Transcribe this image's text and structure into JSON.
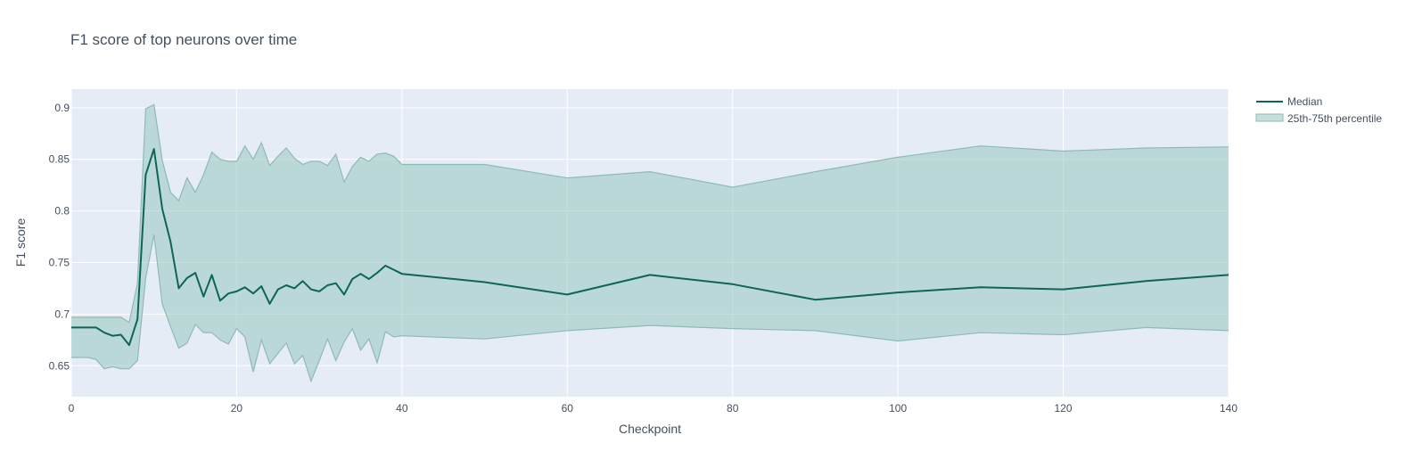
{
  "chart_data": {
    "type": "line",
    "title": "F1 score of top neurons over time",
    "xlabel": "Checkpoint",
    "ylabel": "F1 score",
    "xlim": [
      0,
      140
    ],
    "ylim": [
      0.62,
      0.918
    ],
    "x_ticks": [
      0,
      20,
      40,
      60,
      80,
      100,
      120,
      140
    ],
    "y_ticks": [
      0.65,
      0.7,
      0.75,
      0.8,
      0.85,
      0.9
    ],
    "y_tick_labels": [
      "0.65",
      "0.7",
      "0.75",
      "0.8",
      "0.85",
      "0.9"
    ],
    "grid": true,
    "legend_position": "top-right",
    "colors": {
      "median_line": "#0d6553",
      "band_fill": "#9fcbc4",
      "band_line": "#8fbab4",
      "plot_bg": "#e5ecf6",
      "grid": "#ffffff"
    },
    "x": [
      0,
      1,
      2,
      3,
      4,
      5,
      6,
      7,
      8,
      9,
      10,
      11,
      12,
      13,
      14,
      15,
      16,
      17,
      18,
      19,
      20,
      21,
      22,
      23,
      24,
      25,
      26,
      27,
      28,
      29,
      30,
      31,
      32,
      33,
      34,
      35,
      36,
      37,
      38,
      39,
      40,
      50,
      60,
      70,
      80,
      90,
      100,
      110,
      120,
      130,
      140
    ],
    "series": [
      {
        "name": "Median",
        "kind": "line",
        "values": [
          0.687,
          0.687,
          0.687,
          0.687,
          0.682,
          0.679,
          0.68,
          0.67,
          0.695,
          0.835,
          0.86,
          0.802,
          0.77,
          0.725,
          0.735,
          0.74,
          0.717,
          0.738,
          0.713,
          0.72,
          0.722,
          0.726,
          0.72,
          0.727,
          0.71,
          0.724,
          0.728,
          0.725,
          0.732,
          0.724,
          0.722,
          0.728,
          0.73,
          0.719,
          0.734,
          0.739,
          0.734,
          0.74,
          0.747,
          0.743,
          0.739,
          0.731,
          0.719,
          0.738,
          0.729,
          0.714,
          0.721,
          0.726,
          0.724,
          0.732,
          0.738
        ]
      },
      {
        "name": "25th-75th percentile",
        "kind": "band",
        "upper": [
          0.697,
          0.697,
          0.697,
          0.697,
          0.697,
          0.697,
          0.697,
          0.692,
          0.73,
          0.899,
          0.903,
          0.849,
          0.818,
          0.81,
          0.832,
          0.818,
          0.835,
          0.857,
          0.85,
          0.848,
          0.848,
          0.863,
          0.85,
          0.866,
          0.844,
          0.853,
          0.861,
          0.851,
          0.845,
          0.848,
          0.848,
          0.844,
          0.855,
          0.828,
          0.843,
          0.852,
          0.848,
          0.855,
          0.856,
          0.853,
          0.845,
          0.845,
          0.832,
          0.838,
          0.823,
          0.838,
          0.852,
          0.863,
          0.858,
          0.861,
          0.862
        ],
        "lower": [
          0.658,
          0.658,
          0.658,
          0.656,
          0.647,
          0.649,
          0.647,
          0.647,
          0.655,
          0.735,
          0.777,
          0.71,
          0.688,
          0.667,
          0.672,
          0.69,
          0.682,
          0.682,
          0.675,
          0.671,
          0.686,
          0.678,
          0.644,
          0.675,
          0.652,
          0.662,
          0.672,
          0.652,
          0.66,
          0.635,
          0.655,
          0.676,
          0.655,
          0.673,
          0.686,
          0.665,
          0.676,
          0.653,
          0.683,
          0.678,
          0.679,
          0.676,
          0.684,
          0.689,
          0.686,
          0.684,
          0.674,
          0.682,
          0.68,
          0.687,
          0.684
        ]
      }
    ]
  }
}
